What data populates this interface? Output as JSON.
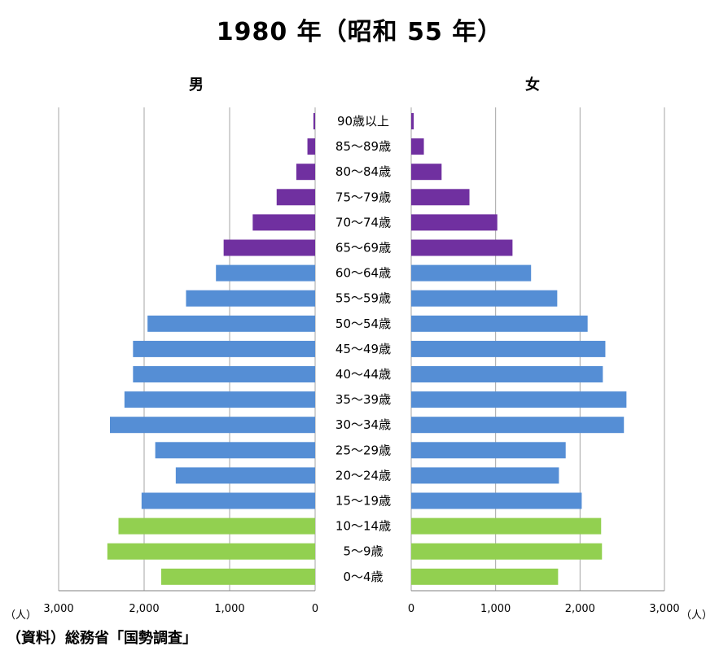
{
  "title": "1980 年（昭和 55 年）",
  "male_label": "男",
  "female_label": "女",
  "source": "（資料）総務省「国勢調査」",
  "chart_data": {
    "type": "bar",
    "subtype": "population-pyramid",
    "title": "1980 年（昭和 55 年）",
    "categories": [
      "90歳以上",
      "85～89歳",
      "80～84歳",
      "75～79歳",
      "70～74歳",
      "65～69歳",
      "60～64歳",
      "55～59歳",
      "50～54歳",
      "45～49歳",
      "40～44歳",
      "35～39歳",
      "30～34歳",
      "25～29歳",
      "20～24歳",
      "15～19歳",
      "10～14歳",
      "5～9歳",
      "0～4歳"
    ],
    "series": [
      {
        "name": "男",
        "values": [
          20,
          90,
          220,
          450,
          730,
          1070,
          1160,
          1510,
          1960,
          2130,
          2130,
          2230,
          2400,
          1870,
          1630,
          2030,
          2300,
          2430,
          1800
        ]
      },
      {
        "name": "女",
        "values": [
          30,
          150,
          360,
          690,
          1020,
          1200,
          1420,
          1730,
          2090,
          2300,
          2270,
          2550,
          2520,
          1830,
          1750,
          2020,
          2250,
          2260,
          1740
        ]
      }
    ],
    "group_colors": [
      "#7030a0",
      "#7030a0",
      "#7030a0",
      "#7030a0",
      "#7030a0",
      "#7030a0",
      "#558ed5",
      "#558ed5",
      "#558ed5",
      "#558ed5",
      "#558ed5",
      "#558ed5",
      "#558ed5",
      "#558ed5",
      "#558ed5",
      "#558ed5",
      "#92d050",
      "#92d050",
      "#92d050"
    ],
    "xlim": [
      0,
      3000
    ],
    "x_ticks": [
      "3,000",
      "2,000",
      "1,000",
      "0"
    ],
    "x_ticks_right": [
      "0",
      "1,000",
      "2,000",
      "3,000"
    ],
    "unit": "（人）",
    "grid": "vertical"
  }
}
